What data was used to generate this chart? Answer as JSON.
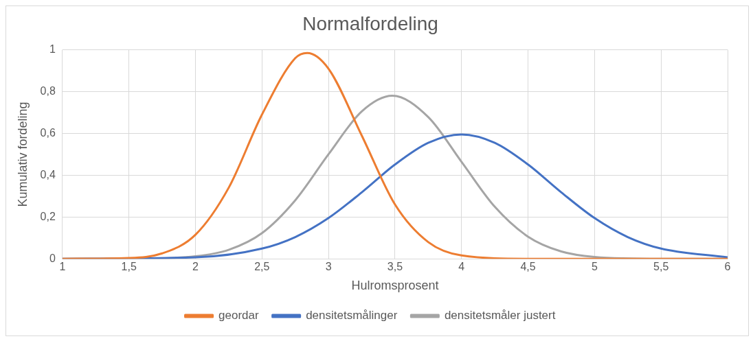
{
  "chart_data": {
    "type": "line",
    "title": "Normalfordeling",
    "xlabel": "Hulromsprosent",
    "ylabel": "Kumulativ fordeling",
    "xlim": [
      1,
      6
    ],
    "xticks": [
      {
        "value": 1,
        "label": "1"
      },
      {
        "value": 1.5,
        "label": "1,5"
      },
      {
        "value": 2,
        "label": "2"
      },
      {
        "value": 2.5,
        "label": "2,5"
      },
      {
        "value": 3,
        "label": "3"
      },
      {
        "value": 3.5,
        "label": "3,5"
      },
      {
        "value": 4,
        "label": "4"
      },
      {
        "value": 4.5,
        "label": "4,5"
      },
      {
        "value": 5,
        "label": "5"
      },
      {
        "value": 5.5,
        "label": "5,5"
      },
      {
        "value": 6,
        "label": "6"
      }
    ],
    "ylim": [
      0,
      1
    ],
    "yticks": [
      {
        "value": 0,
        "label": "0"
      },
      {
        "value": 0.2,
        "label": "0,2"
      },
      {
        "value": 0.4,
        "label": "0,4"
      },
      {
        "value": 0.6,
        "label": "0,6"
      },
      {
        "value": 0.8,
        "label": "0,8"
      },
      {
        "value": 1,
        "label": "1"
      }
    ],
    "grid": true,
    "legend": "bottom",
    "marker": "none",
    "line_style": "solid",
    "series": [
      {
        "name": "geordar",
        "color": "#ed7d31",
        "x": [
          1,
          1.5,
          1.75,
          2,
          2.25,
          2.5,
          2.75,
          2.84,
          3,
          3.25,
          3.5,
          3.75,
          4,
          4.5,
          5,
          5.5,
          6
        ],
        "values": [
          0,
          0.004,
          0.026,
          0.115,
          0.34,
          0.69,
          0.96,
          0.985,
          0.91,
          0.59,
          0.26,
          0.08,
          0.016,
          0,
          0,
          0,
          0
        ]
      },
      {
        "name": "densitetsmålinger",
        "color": "#4472c4",
        "x": [
          1,
          2,
          2.5,
          2.75,
          3,
          3.25,
          3.5,
          3.75,
          4,
          4.25,
          4.5,
          4.75,
          5,
          5.25,
          5.5,
          6
        ],
        "values": [
          0,
          0.007,
          0.049,
          0.104,
          0.195,
          0.318,
          0.451,
          0.555,
          0.595,
          0.555,
          0.451,
          0.318,
          0.195,
          0.104,
          0.049,
          0.007
        ]
      },
      {
        "name": "densitetsmåler justert",
        "color": "#a5a5a5",
        "x": [
          1,
          1.5,
          2,
          2.25,
          2.5,
          2.75,
          3,
          3.25,
          3.48,
          3.75,
          4,
          4.25,
          4.5,
          4.75,
          5,
          5.5,
          6
        ],
        "values": [
          0,
          0,
          0.012,
          0.043,
          0.123,
          0.28,
          0.5,
          0.705,
          0.78,
          0.678,
          0.464,
          0.249,
          0.106,
          0.035,
          0.009,
          0,
          0
        ]
      }
    ]
  }
}
